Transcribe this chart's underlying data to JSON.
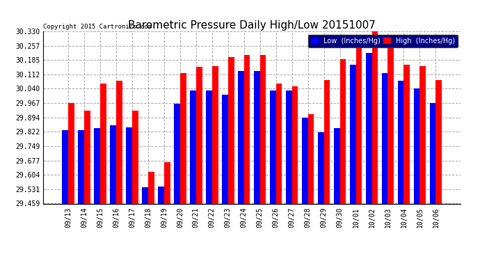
{
  "title": "Barometric Pressure Daily High/Low 20151007",
  "copyright": "Copyright 2015 Cartronics.com",
  "legend_low": "Low  (Inches/Hg)",
  "legend_high": "High  (Inches/Hg)",
  "dates": [
    "09/13",
    "09/14",
    "09/15",
    "09/16",
    "09/17",
    "09/18",
    "09/19",
    "09/20",
    "09/21",
    "09/22",
    "09/23",
    "09/24",
    "09/25",
    "09/26",
    "09/27",
    "09/28",
    "09/29",
    "09/30",
    "10/01",
    "10/02",
    "10/03",
    "10/04",
    "10/05",
    "10/06"
  ],
  "low_values": [
    29.83,
    29.83,
    29.84,
    29.855,
    29.845,
    29.54,
    29.545,
    29.965,
    30.03,
    30.03,
    30.01,
    30.13,
    30.13,
    30.03,
    30.03,
    29.895,
    29.82,
    29.84,
    30.16,
    30.22,
    30.12,
    30.08,
    30.04,
    29.967
  ],
  "high_values": [
    29.967,
    29.93,
    30.065,
    30.08,
    29.93,
    29.62,
    29.67,
    30.12,
    30.15,
    30.155,
    30.2,
    30.21,
    30.21,
    30.065,
    30.052,
    29.912,
    30.085,
    30.19,
    30.31,
    30.33,
    30.255,
    30.16,
    30.155,
    30.082
  ],
  "ylim_min": 29.459,
  "ylim_max": 30.33,
  "yticks": [
    29.459,
    29.531,
    29.604,
    29.677,
    29.749,
    29.822,
    29.894,
    29.967,
    30.04,
    30.112,
    30.185,
    30.257,
    30.33
  ],
  "low_color": "#0000ff",
  "high_color": "#ff0000",
  "bg_color": "#ffffff",
  "grid_color": "#aaaaaa",
  "title_fontsize": 11,
  "tick_fontsize": 7,
  "bar_width": 0.38,
  "legend_bg": "#000080"
}
